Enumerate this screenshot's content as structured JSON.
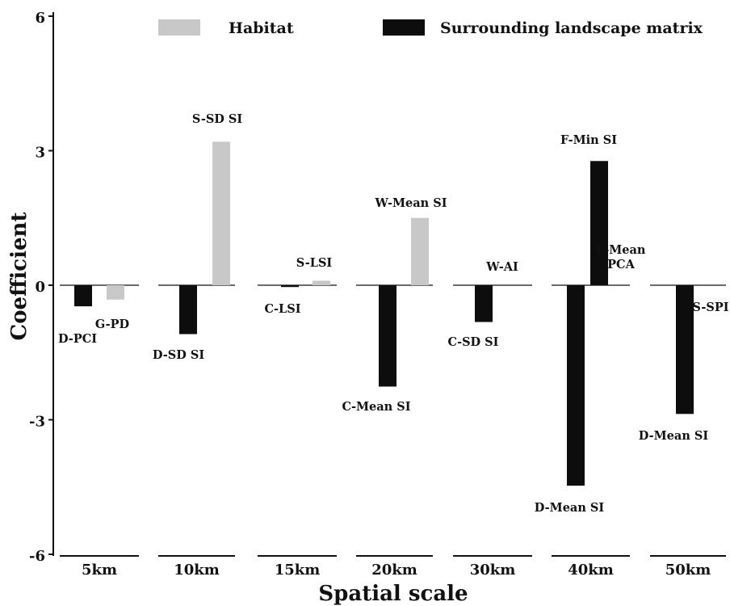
{
  "chart_data": {
    "type": "bar",
    "xlabel": "Spatial scale",
    "ylabel": "Coefficient",
    "ylim": [
      -6,
      6
    ],
    "yticks": [
      6,
      3,
      0,
      -3,
      -6
    ],
    "ytick_labels": [
      "6",
      "3",
      "0",
      "-3",
      "-6"
    ],
    "legend": {
      "placement": "top",
      "entries": [
        {
          "name": "Habitat",
          "color": "#c8c8c8"
        },
        {
          "name": "Surrounding landscape matrix",
          "color": "#0d0d0d"
        }
      ]
    },
    "groups": [
      {
        "category": "5km",
        "bars": [
          {
            "series": "Surrounding landscape matrix",
            "label": "D-PCI",
            "value": -0.47
          },
          {
            "series": "Habitat",
            "label": "G-PD",
            "value": -0.32
          }
        ]
      },
      {
        "category": "10km",
        "bars": [
          {
            "series": "Surrounding landscape matrix",
            "label": "D-SD SI",
            "value": -1.09
          },
          {
            "series": "Habitat",
            "label": "S-SD SI",
            "value": 3.2
          }
        ]
      },
      {
        "category": "15km",
        "bars": [
          {
            "series": "Surrounding landscape matrix",
            "label": "C-LSI",
            "value": -0.04
          },
          {
            "series": "Habitat",
            "label": "S-LSI",
            "value": 0.1
          }
        ]
      },
      {
        "category": "20km",
        "bars": [
          {
            "series": "Surrounding landscape matrix",
            "label": "C-Mean SI",
            "value": -2.26
          },
          {
            "series": "Habitat",
            "label": "W-Mean SI",
            "value": 1.5
          }
        ]
      },
      {
        "category": "30km",
        "bars": [
          {
            "series": "Surrounding landscape matrix",
            "label": "C-SD SI",
            "value": -0.82
          },
          {
            "series": "Habitat",
            "label": "W-AI",
            "value": 0
          }
        ]
      },
      {
        "category": "40km",
        "bars": [
          {
            "series": "Surrounding landscape matrix",
            "label": "D-Mean SI",
            "value": -4.47
          },
          {
            "series": "Surrounding landscape matrix",
            "label": "F-Min SI",
            "value": 2.77
          },
          {
            "series": "Surrounding landscape matrix",
            "label": "F-Mean PCA",
            "value": 0
          }
        ]
      },
      {
        "category": "50km",
        "bars": [
          {
            "series": "Surrounding landscape matrix",
            "label": "D-Mean SI",
            "value": -2.87
          },
          {
            "series": "Habitat",
            "label": "S-SPI",
            "value": 0
          }
        ]
      }
    ]
  }
}
